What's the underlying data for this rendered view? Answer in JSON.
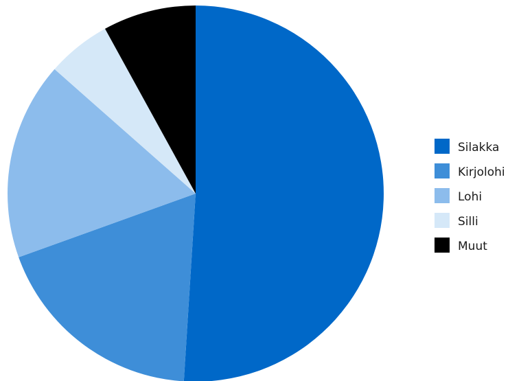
{
  "chart_data": {
    "type": "pie",
    "title": "",
    "start_angle_deg": 0,
    "direction": "clockwise",
    "slices": [
      {
        "label": "Silakka",
        "value": 51.0,
        "color": "#0068c8"
      },
      {
        "label": "Kirjolohi",
        "value": 18.5,
        "color": "#3e8ed8"
      },
      {
        "label": "Lohi",
        "value": 17.0,
        "color": "#8cbcec"
      },
      {
        "label": "Silli",
        "value": 5.5,
        "color": "#d5e8f8"
      },
      {
        "label": "Muut",
        "value": 8.0,
        "color": "#000000"
      }
    ],
    "legend": {
      "position": "right",
      "items": [
        "Silakka",
        "Kirjolohi",
        "Lohi",
        "Silli",
        "Muut"
      ]
    }
  }
}
